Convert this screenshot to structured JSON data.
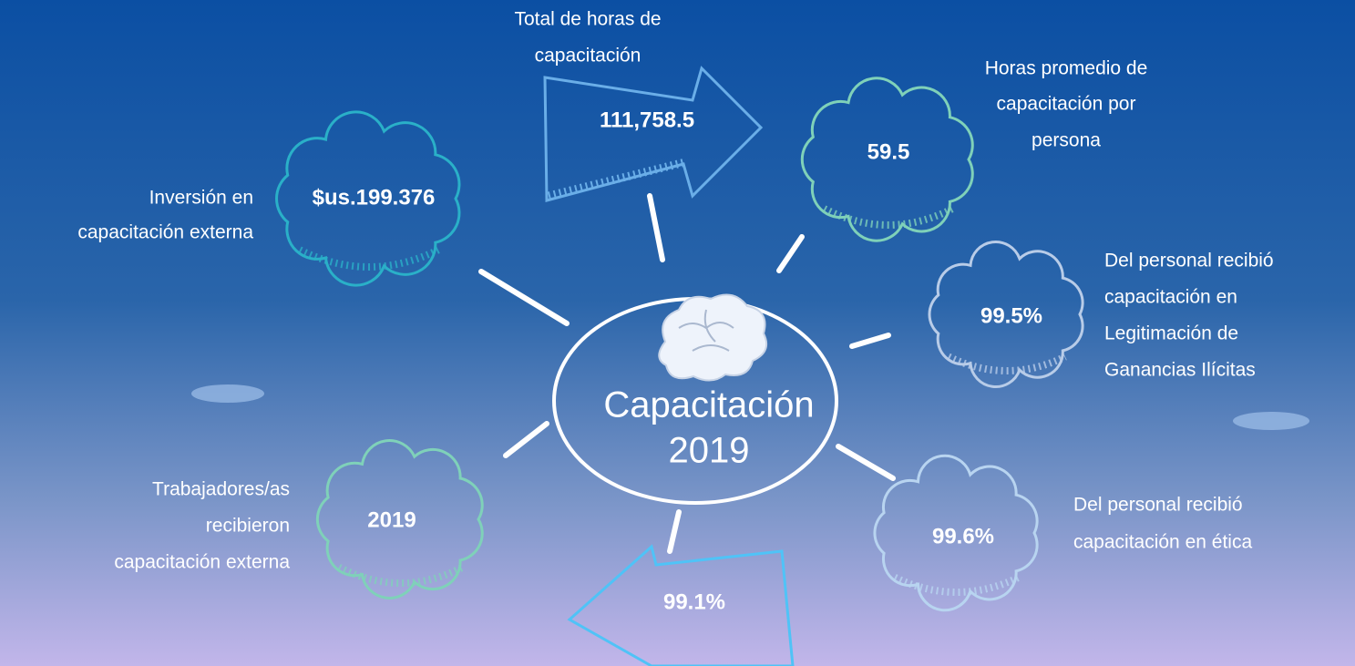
{
  "center": {
    "line1": "Capacitación",
    "line2": "2019"
  },
  "nodes": [
    {
      "value": "$us.199.376",
      "label": [
        "Inversión en",
        "capacitación externa"
      ]
    },
    {
      "value": "111,758.5",
      "label": [
        "Total de horas de",
        "capacitación"
      ]
    },
    {
      "value": "59.5",
      "label": [
        "Horas promedio de",
        "capacitación por",
        "persona"
      ]
    },
    {
      "value": "99.5%",
      "label": [
        "Del personal recibió",
        "capacitación en",
        "Legitimación de",
        "Ganancias Ilícitas"
      ]
    },
    {
      "value": "99.6%",
      "label": [
        "Del personal recibió",
        "capacitación en ética"
      ]
    },
    {
      "value": "99.1%",
      "label": []
    },
    {
      "value": "2019",
      "label": [
        "Trabajadores/as",
        "recibieron",
        "capacitación externa"
      ]
    }
  ]
}
